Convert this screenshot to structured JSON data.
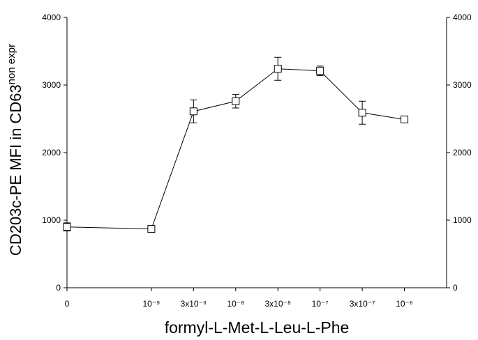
{
  "chart_data": {
    "type": "line",
    "xlabel": "formyl-L-Met-L-Leu-L-Phe",
    "ylabel": {
      "text": "CD203c-PE MFI in CD63",
      "superscript": "non expr"
    },
    "categories": [
      "0",
      "10⁻⁹",
      "3x10⁻⁹",
      "10⁻⁸",
      "3x10⁻⁸",
      "10⁻⁷",
      "3x10⁻⁷",
      "10⁻⁶"
    ],
    "series": [
      {
        "color": "#000000",
        "values": [
          900,
          870,
          2610,
          2760,
          3240,
          3210,
          2590,
          2490
        ],
        "errors": [
          60,
          10,
          170,
          100,
          170,
          70,
          170,
          40
        ]
      }
    ],
    "ylim": [
      0,
      4000
    ],
    "yticks": [
      0,
      1000,
      2000,
      3000,
      4000
    ],
    "y2lim": [
      0,
      4000
    ],
    "y2ticks": [
      0,
      1000,
      2000,
      3000,
      4000
    ],
    "grid": false
  }
}
